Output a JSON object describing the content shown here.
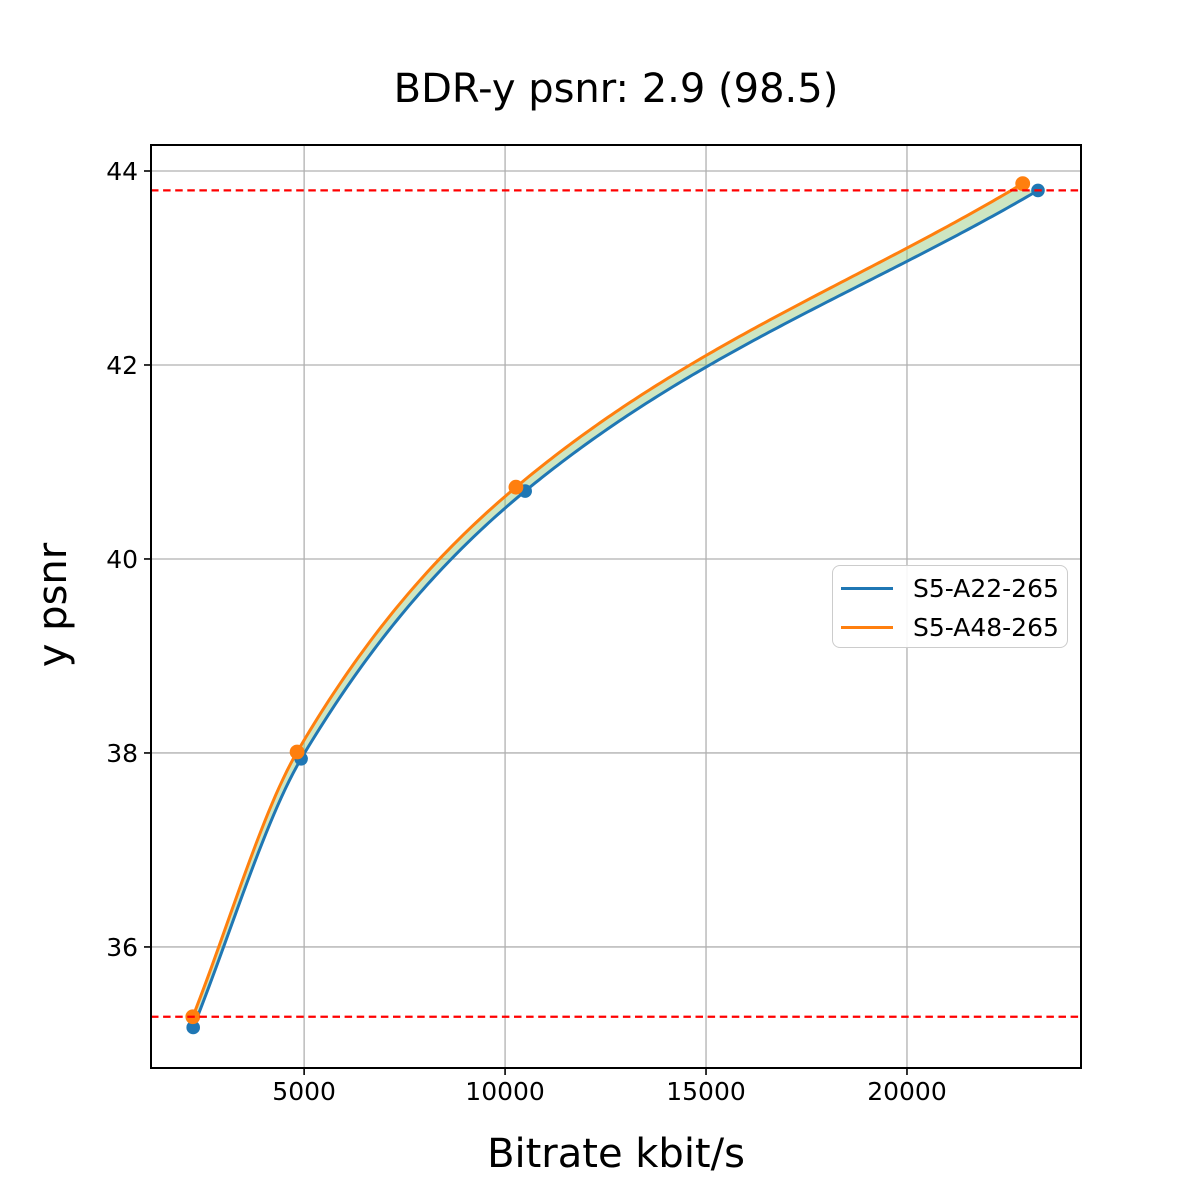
{
  "chart_data": {
    "type": "line",
    "title": "BDR-y psnr: 2.9 (98.5)",
    "xlabel": "Bitrate kbit/s",
    "ylabel": "y psnr",
    "xlim": [
      1190,
      24330
    ],
    "ylim": [
      34.752,
      44.268
    ],
    "x_ticks": [
      5000,
      10000,
      15000,
      20000
    ],
    "y_ticks": [
      36,
      38,
      40,
      42,
      44
    ],
    "grid": true,
    "grid_color": "#b0b0b0",
    "legend_position": "center right",
    "series": [
      {
        "name": "S5-A22-265",
        "color": "#1f77b4",
        "x": [
          2240,
          4925,
          10500,
          23260
        ],
        "y": [
          35.17,
          37.94,
          40.7,
          43.8
        ]
      },
      {
        "name": "S5-A48-265",
        "color": "#ff7f0e",
        "x": [
          2230,
          4825,
          10270,
          22880
        ],
        "y": [
          35.28,
          38.01,
          40.74,
          43.87
        ]
      }
    ],
    "hlines": [
      {
        "y": 43.8,
        "color": "#ff0000",
        "style": "dashed"
      },
      {
        "y": 35.28,
        "color": "#ff0000",
        "style": "dashed"
      }
    ],
    "fill_between": {
      "y_min": 35.28,
      "y_max": 43.8,
      "color": "rgba(144,200,120,0.45)"
    }
  }
}
